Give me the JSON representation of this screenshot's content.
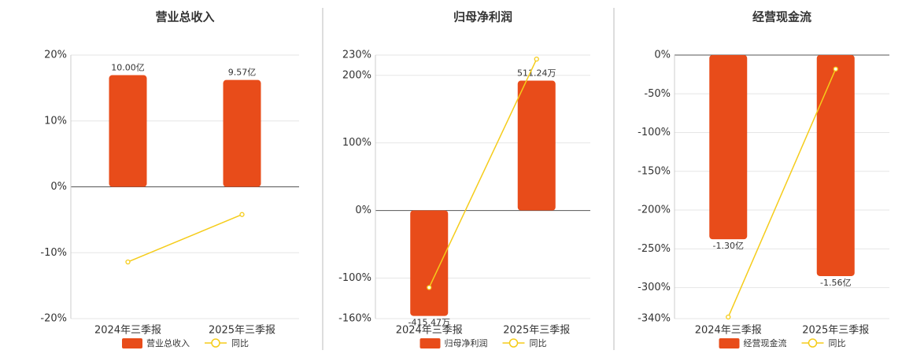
{
  "chart_data": [
    {
      "type": "bar",
      "title": "营业总收入",
      "categories": [
        "2024年三季报",
        "2025年三季报"
      ],
      "series": [
        {
          "name": "营业总收入",
          "type": "bar",
          "color": "#e84c1a",
          "axis": "y2",
          "values": [
            10.0,
            9.57
          ],
          "value_labels": [
            "10.00亿",
            "9.57亿"
          ]
        },
        {
          "name": "同比",
          "type": "line",
          "color": "#f5cc1a",
          "values": [
            -11.4,
            -4.2
          ]
        }
      ],
      "ylim": [
        -20,
        20
      ],
      "yticks": [
        {
          "value": -20,
          "label": "-20%"
        },
        {
          "value": -10,
          "label": "-10%"
        },
        {
          "value": 0,
          "label": "0%"
        },
        {
          "value": 10,
          "label": "10%"
        },
        {
          "value": 20,
          "label": "20%"
        }
      ],
      "y2lim": [
        -11.8,
        11.8
      ],
      "grid": true
    },
    {
      "type": "bar",
      "title": "归母净利润",
      "categories": [
        "2024年三季报",
        "2025年三季报"
      ],
      "series": [
        {
          "name": "归母净利润",
          "type": "bar",
          "color": "#e84c1a",
          "axis": "y2",
          "values": [
            -415.47,
            511.24
          ],
          "value_labels": [
            "-415.47万",
            "511.24万"
          ]
        },
        {
          "name": "同比",
          "type": "line",
          "color": "#f5cc1a",
          "values": [
            -114,
            224
          ]
        }
      ],
      "ylim": [
        -160,
        230
      ],
      "yticks": [
        {
          "value": -160,
          "label": "-160%"
        },
        {
          "value": -100,
          "label": "-100%"
        },
        {
          "value": 0,
          "label": "0%"
        },
        {
          "value": 100,
          "label": "100%"
        },
        {
          "value": 200,
          "label": "200%"
        },
        {
          "value": 230,
          "label": "230%"
        }
      ],
      "y2lim": [
        -426,
        612
      ],
      "grid": true
    },
    {
      "type": "bar",
      "title": "经营现金流",
      "categories": [
        "2024年三季报",
        "2025年三季报"
      ],
      "series": [
        {
          "name": "经营现金流",
          "type": "bar",
          "color": "#e84c1a",
          "axis": "y2",
          "values": [
            -1.3,
            -1.56
          ],
          "value_labels": [
            "-1.30亿",
            "-1.56亿"
          ]
        },
        {
          "name": "同比",
          "type": "line",
          "color": "#f5cc1a",
          "values": [
            -338,
            -18
          ]
        }
      ],
      "ylim": [
        -340,
        0
      ],
      "yticks": [
        {
          "value": -340,
          "label": "-340%"
        },
        {
          "value": -300,
          "label": "-300%"
        },
        {
          "value": -250,
          "label": "-250%"
        },
        {
          "value": -200,
          "label": "-200%"
        },
        {
          "value": -150,
          "label": "-150%"
        },
        {
          "value": -100,
          "label": "-100%"
        },
        {
          "value": -50,
          "label": "-50%"
        },
        {
          "value": 0,
          "label": "0%"
        }
      ],
      "y2lim": [
        -1.86,
        0
      ],
      "grid": true
    }
  ]
}
